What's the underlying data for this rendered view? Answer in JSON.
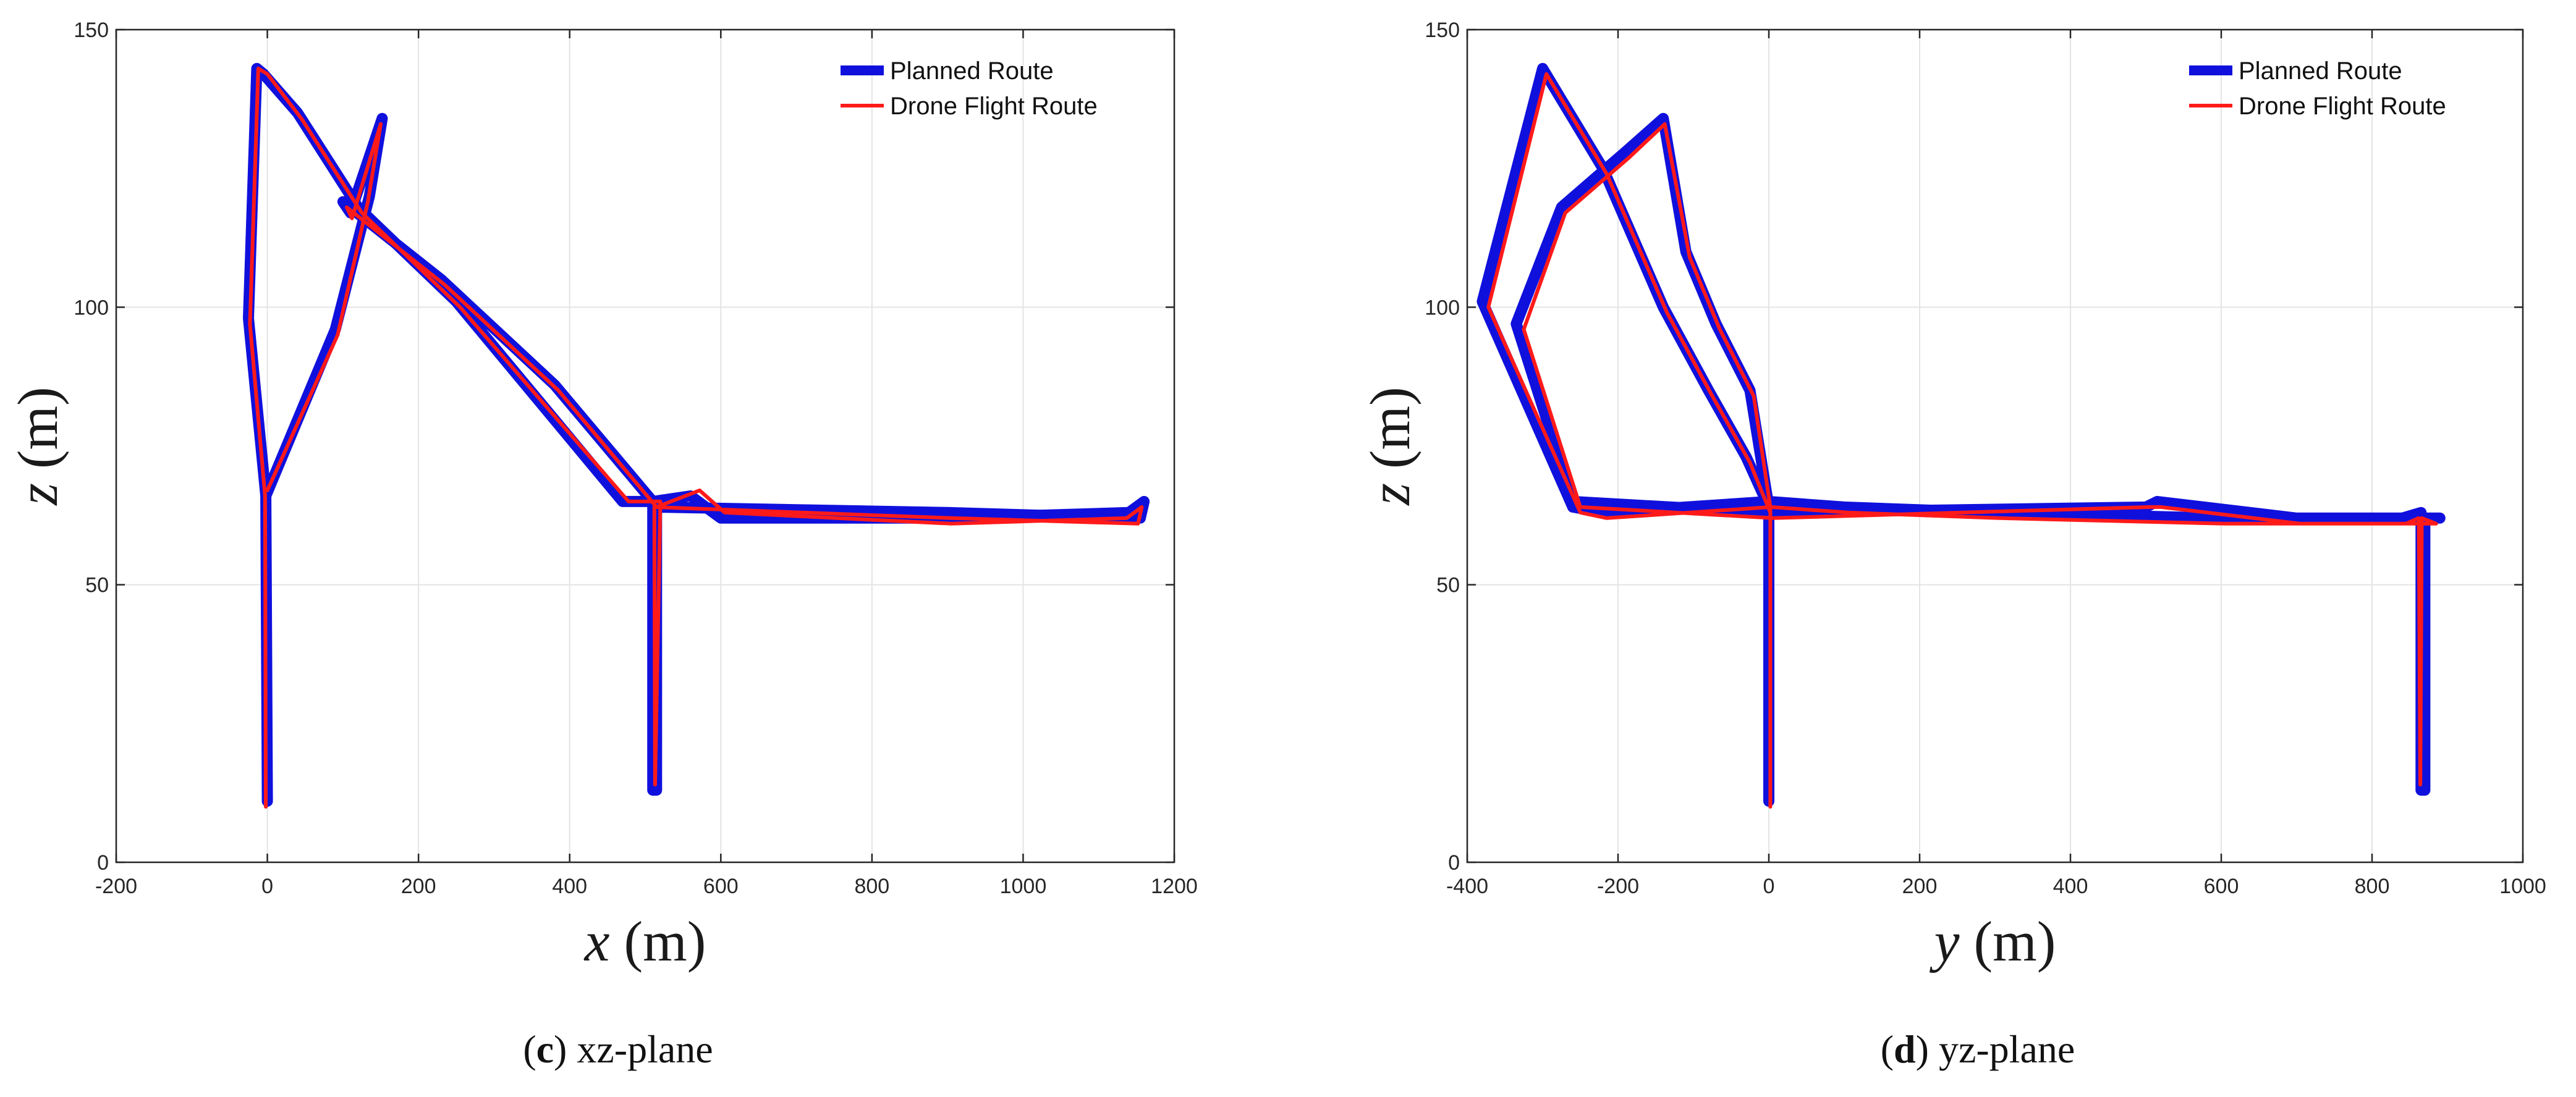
{
  "chart_data": [
    {
      "type": "line",
      "caption_letter": "c",
      "caption_text": " xz-plane",
      "xlabel_var": "x",
      "xlabel_unit": " (m)",
      "ylabel_var": "z",
      "ylabel_unit": " (m)",
      "xlim": [
        -200,
        1200
      ],
      "ylim": [
        0,
        150
      ],
      "xticks": [
        -200,
        0,
        200,
        400,
        600,
        800,
        1000,
        1200
      ],
      "yticks": [
        0,
        50,
        100,
        150
      ],
      "grid": true,
      "legend_position": "top-right",
      "series": [
        {
          "name": "Planned Route",
          "color": "#1010dd",
          "points": [
            [
              0,
              11
            ],
            [
              -2,
              66
            ],
            [
              -25,
              98
            ],
            [
              -14,
              143
            ],
            [
              -5,
              142
            ],
            [
              40,
              135
            ],
            [
              120,
              118
            ],
            [
              250,
              101
            ],
            [
              470,
              65
            ],
            [
              515,
              65
            ],
            [
              515,
              13
            ],
            [
              510,
              13
            ],
            [
              510,
              64
            ],
            [
              900,
              63
            ],
            [
              1155,
              62
            ],
            [
              1160,
              65
            ],
            [
              1140,
              63
            ],
            [
              900,
              62
            ],
            [
              600,
              62
            ],
            [
              560,
              66
            ],
            [
              510,
              65
            ],
            [
              380,
              86
            ],
            [
              230,
              105
            ],
            [
              100,
              119
            ],
            [
              110,
              117
            ],
            [
              152,
              134
            ],
            [
              135,
              120
            ],
            [
              90,
              96
            ],
            [
              -2,
              66
            ]
          ]
        },
        {
          "name": "Drone Flight Route",
          "color": "#ff1a1a",
          "points": [
            [
              -2,
              10
            ],
            [
              -3,
              66
            ],
            [
              -23,
              97
            ],
            [
              -12,
              143
            ],
            [
              0,
              142
            ],
            [
              45,
              134
            ],
            [
              125,
              117
            ],
            [
              255,
              100
            ],
            [
              478,
              65
            ],
            [
              520,
              65
            ],
            [
              513,
              14
            ],
            [
              512,
              64
            ],
            [
              905,
              62
            ],
            [
              1152,
              61
            ],
            [
              1157,
              64
            ],
            [
              1137,
              62
            ],
            [
              905,
              61
            ],
            [
              605,
              63
            ],
            [
              572,
              67
            ],
            [
              515,
              64
            ],
            [
              385,
              85
            ],
            [
              235,
              104
            ],
            [
              105,
              118
            ],
            [
              112,
              116
            ],
            [
              150,
              133
            ],
            [
              133,
              119
            ],
            [
              93,
              95
            ],
            [
              0,
              67
            ]
          ]
        }
      ]
    },
    {
      "type": "line",
      "caption_letter": "d",
      "caption_text": " yz-plane",
      "xlabel_var": "y",
      "xlabel_unit": " (m)",
      "ylabel_var": "z",
      "ylabel_unit": " (m)",
      "xlim": [
        -400,
        1000
      ],
      "ylim": [
        0,
        150
      ],
      "xticks": [
        -400,
        -200,
        0,
        200,
        400,
        600,
        800,
        1000
      ],
      "yticks": [
        0,
        50,
        100,
        150
      ],
      "grid": true,
      "legend_position": "top-right",
      "series": [
        {
          "name": "Planned Route",
          "color": "#1010dd",
          "points": [
            [
              0,
              11
            ],
            [
              0,
              64
            ],
            [
              -25,
              85
            ],
            [
              -70,
              97
            ],
            [
              -110,
              110
            ],
            [
              -140,
              134
            ],
            [
              -190,
              128
            ],
            [
              -275,
              118
            ],
            [
              -335,
              97
            ],
            [
              -260,
              65
            ],
            [
              0,
              63
            ],
            [
              500,
              64
            ],
            [
              515,
              65
            ],
            [
              700,
              62
            ],
            [
              840,
              62
            ],
            [
              865,
              63
            ],
            [
              865,
              13
            ],
            [
              870,
              13
            ],
            [
              870,
              62
            ],
            [
              890,
              62
            ],
            [
              600,
              62
            ],
            [
              300,
              63
            ],
            [
              100,
              64
            ],
            [
              0,
              65
            ],
            [
              -220,
              63
            ],
            [
              -260,
              64
            ],
            [
              -380,
              101
            ],
            [
              -300,
              143
            ],
            [
              -220,
              125
            ],
            [
              -140,
              100
            ],
            [
              -80,
              85
            ],
            [
              -30,
              73
            ],
            [
              0,
              64
            ]
          ]
        },
        {
          "name": "Drone Flight Route",
          "color": "#ff1a1a",
          "points": [
            [
              2,
              10
            ],
            [
              2,
              64
            ],
            [
              -20,
              84
            ],
            [
              -65,
              96
            ],
            [
              -105,
              109
            ],
            [
              -138,
              133
            ],
            [
              -185,
              127
            ],
            [
              -270,
              117
            ],
            [
              -325,
              96
            ],
            [
              -250,
              64
            ],
            [
              5,
              62
            ],
            [
              505,
              64
            ],
            [
              520,
              64
            ],
            [
              705,
              61
            ],
            [
              845,
              61
            ],
            [
              862,
              62
            ],
            [
              864,
              14
            ],
            [
              866,
              62
            ],
            [
              885,
              61
            ],
            [
              605,
              61
            ],
            [
              305,
              62
            ],
            [
              105,
              63
            ],
            [
              3,
              64
            ],
            [
              -215,
              62
            ],
            [
              -250,
              63
            ],
            [
              -372,
              100
            ],
            [
              -295,
              142
            ],
            [
              -215,
              124
            ],
            [
              -135,
              99
            ],
            [
              -75,
              84
            ],
            [
              -25,
              72
            ],
            [
              2,
              63
            ]
          ]
        }
      ]
    }
  ]
}
